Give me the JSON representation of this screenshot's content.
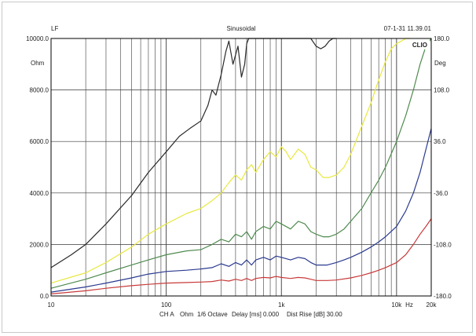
{
  "header": {
    "left": "LF",
    "center": "Sinusoidal",
    "right": "07-1-31 11.39.01"
  },
  "brand": "CLIO",
  "chart_data": {
    "type": "line",
    "x_scale": "log",
    "xlim": [
      10,
      20000
    ],
    "ylim": [
      0,
      10000
    ],
    "y2lim": [
      -180,
      180
    ],
    "grid": true,
    "ylabel": "Ohm",
    "y2label": "Deg",
    "x_ticks": [
      {
        "value": 10,
        "label": "10"
      },
      {
        "value": 100,
        "label": "100"
      },
      {
        "value": 1000,
        "label": "1k"
      },
      {
        "value": 10000,
        "label": "10k"
      },
      {
        "value": 20000,
        "label": "20k"
      }
    ],
    "x_unit": "Hz",
    "y_ticks": [
      {
        "value": 0,
        "label": "0.0"
      },
      {
        "value": 2000,
        "label": "2000.0"
      },
      {
        "value": 4000,
        "label": "4000.0"
      },
      {
        "value": 6000,
        "label": "6000.0"
      },
      {
        "value": 8000,
        "label": "8000.0"
      },
      {
        "value": 10000,
        "label": "10000.0"
      }
    ],
    "y2_ticks": [
      {
        "value": -180,
        "label": "-180.0"
      },
      {
        "value": -108,
        "label": "-108.0"
      },
      {
        "value": -36,
        "label": "-36.0"
      },
      {
        "value": 36,
        "label": "36.0"
      },
      {
        "value": 108,
        "label": "108.0"
      },
      {
        "value": 180,
        "label": "180.0"
      }
    ],
    "series": [
      {
        "color": "#2a2a2a",
        "x": [
          10,
          15,
          20,
          30,
          50,
          70,
          100,
          130,
          160,
          200,
          230,
          250,
          270,
          300,
          330,
          350,
          380,
          420,
          450,
          480,
          500,
          520,
          550,
          580,
          600,
          650,
          700,
          750,
          800,
          900,
          1000,
          1200,
          1500,
          1800,
          2000,
          2200,
          2400,
          2600,
          2800,
          3000
        ],
        "y": [
          1100,
          1600,
          2000,
          2800,
          3900,
          4800,
          5600,
          6200,
          6500,
          6800,
          7400,
          8000,
          7800,
          8600,
          9500,
          9900,
          9000,
          9700,
          8500,
          9000,
          9800,
          10000,
          10000,
          10000,
          10000,
          10000,
          10000,
          10000,
          10000,
          10000,
          10000,
          10000,
          10000,
          10000,
          9700,
          9600,
          9700,
          9900,
          10000,
          10000
        ]
      },
      {
        "color": "#e8e840",
        "x": [
          10,
          20,
          30,
          50,
          70,
          100,
          150,
          200,
          250,
          300,
          350,
          400,
          450,
          500,
          550,
          600,
          700,
          800,
          900,
          1000,
          1100,
          1200,
          1400,
          1600,
          1800,
          2000,
          2300,
          2600,
          3000,
          3500,
          4000,
          5000,
          6000,
          7000,
          8000,
          9000,
          10000,
          11000,
          12000,
          13000
        ],
        "y": [
          500,
          900,
          1300,
          1900,
          2400,
          2800,
          3200,
          3400,
          3700,
          4000,
          4400,
          4700,
          4500,
          4900,
          5100,
          4800,
          5300,
          5600,
          5400,
          5800,
          5600,
          5300,
          5700,
          5500,
          5000,
          4900,
          4600,
          4600,
          4700,
          5000,
          5500,
          6600,
          7500,
          8400,
          9100,
          9600,
          9800,
          9900,
          10000,
          10000
        ]
      },
      {
        "color": "#4f8a4f",
        "x": [
          10,
          20,
          30,
          50,
          70,
          100,
          150,
          200,
          250,
          300,
          350,
          400,
          450,
          500,
          550,
          600,
          700,
          800,
          900,
          1000,
          1200,
          1400,
          1600,
          1800,
          2000,
          2300,
          2600,
          3000,
          3500,
          4000,
          5000,
          6000,
          7000,
          8000,
          10000,
          12000,
          14000,
          16000,
          18000,
          20000
        ],
        "y": [
          300,
          650,
          900,
          1200,
          1400,
          1600,
          1750,
          1800,
          2000,
          2200,
          2100,
          2400,
          2300,
          2500,
          2200,
          2500,
          2700,
          2600,
          2900,
          2800,
          2600,
          2900,
          2800,
          2500,
          2400,
          2300,
          2300,
          2400,
          2600,
          2900,
          3400,
          4000,
          4500,
          5000,
          6000,
          7000,
          8000,
          9000,
          9700,
          10000
        ]
      },
      {
        "color": "#2b3a8f",
        "x": [
          10,
          20,
          30,
          50,
          70,
          100,
          150,
          200,
          250,
          300,
          350,
          400,
          450,
          500,
          550,
          600,
          700,
          800,
          900,
          1000,
          1200,
          1400,
          1600,
          1800,
          2000,
          2500,
          3000,
          3500,
          4000,
          5000,
          6000,
          7000,
          8000,
          10000,
          12000,
          14000,
          16000,
          18000,
          20000
        ],
        "y": [
          150,
          350,
          500,
          700,
          850,
          950,
          1000,
          1050,
          1100,
          1250,
          1150,
          1300,
          1200,
          1400,
          1200,
          1400,
          1500,
          1400,
          1550,
          1500,
          1400,
          1500,
          1450,
          1300,
          1200,
          1200,
          1300,
          1400,
          1500,
          1700,
          1900,
          2100,
          2300,
          2700,
          3300,
          4000,
          4800,
          5700,
          6500
        ]
      },
      {
        "color": "#c83a3a",
        "x": [
          10,
          20,
          30,
          50,
          70,
          100,
          150,
          200,
          250,
          300,
          350,
          400,
          450,
          500,
          550,
          600,
          700,
          800,
          900,
          1000,
          1200,
          1400,
          1600,
          1800,
          2000,
          2500,
          3000,
          4000,
          5000,
          6000,
          7000,
          8000,
          10000,
          12000,
          14000,
          16000,
          18000,
          20000
        ],
        "y": [
          80,
          200,
          300,
          400,
          450,
          500,
          520,
          540,
          560,
          620,
          580,
          650,
          600,
          680,
          600,
          680,
          720,
          700,
          760,
          720,
          680,
          720,
          700,
          650,
          600,
          600,
          620,
          700,
          800,
          900,
          1000,
          1100,
          1300,
          1600,
          2000,
          2400,
          2700,
          3000
        ]
      }
    ]
  },
  "footer": {
    "channel": "CH A",
    "unit": "Ohm",
    "smoothing": "1/6 Octave",
    "delay": "Delay [ms] 0.000",
    "dist_rise": "Dist Rise [dB] 30.00"
  }
}
